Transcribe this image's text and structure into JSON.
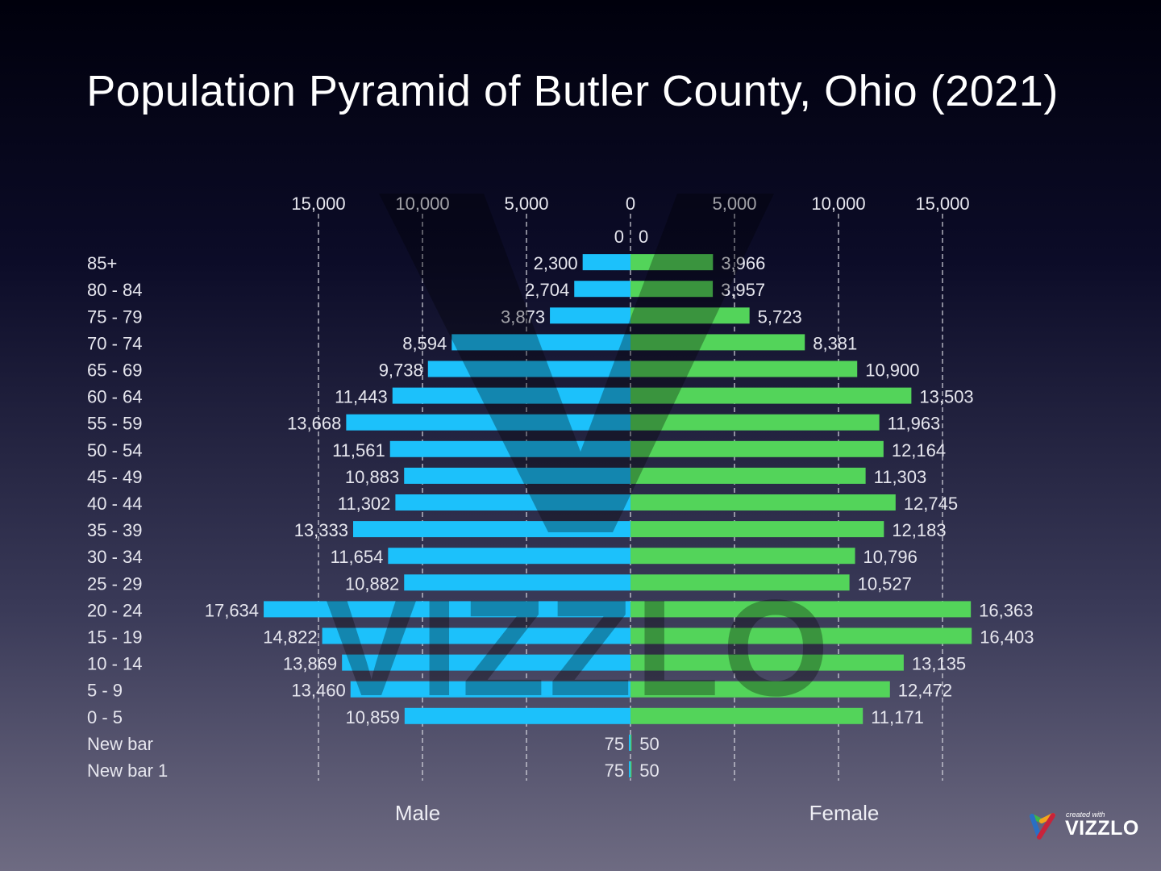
{
  "chart_data": {
    "type": "bar",
    "orientation": "horizontal",
    "layout": "population-pyramid",
    "title": "Population Pyramid of Butler County, Ohio (2021)",
    "categories": [
      "",
      "85+",
      "80 - 84",
      "75 - 79",
      "70 - 74",
      "65 - 69",
      "60 - 64",
      "55 - 59",
      "50 - 54",
      "45 - 49",
      "40 - 44",
      "35 - 39",
      "30 - 34",
      "25 - 29",
      "20 - 24",
      "15 - 19",
      "10 - 14",
      "5 - 9",
      "0 - 5",
      "New bar",
      "New bar 1"
    ],
    "series": [
      {
        "name": "Male",
        "color": "#1cc1fb",
        "values": [
          0,
          2300,
          2704,
          3873,
          8594,
          9738,
          11443,
          13668,
          11561,
          10883,
          11302,
          13333,
          11654,
          10882,
          17634,
          14822,
          13869,
          13460,
          10859,
          75,
          75
        ],
        "labels": [
          "0",
          "2,300",
          "2,704",
          "3,873",
          "8,594",
          "9,738",
          "11,443",
          "13,668",
          "11,561",
          "10,883",
          "11,302",
          "13,333",
          "11,654",
          "10,882",
          "17,634",
          "14,822",
          "13,869",
          "13,460",
          "10,859",
          "75",
          "75"
        ]
      },
      {
        "name": "Female",
        "color": "#53d45a",
        "values": [
          0,
          3966,
          3957,
          5723,
          8381,
          10900,
          13503,
          11963,
          12164,
          11303,
          12745,
          12183,
          10796,
          10527,
          16363,
          16403,
          13135,
          12472,
          11171,
          50,
          50
        ],
        "labels": [
          "0",
          "3,966",
          "3,957",
          "5,723",
          "8,381",
          "10,900",
          "13,503",
          "11,963",
          "12,164",
          "11,303",
          "12,745",
          "12,183",
          "10,796",
          "10,527",
          "16,363",
          "16,403",
          "13,135",
          "12,472",
          "11,171",
          "50",
          "50"
        ]
      }
    ],
    "xaxis": {
      "ticks": [
        15000,
        10000,
        5000,
        0,
        5000,
        10000,
        15000
      ],
      "tick_labels": [
        "15,000",
        "10,000",
        "5,000",
        "0",
        "5,000",
        "10,000",
        "15,000"
      ],
      "range": [
        -15000,
        15000
      ],
      "position": "top"
    },
    "grid": true,
    "gridline_style": "dashed"
  },
  "watermark": "VIZZLO",
  "branding": {
    "created_with": "created with",
    "brand": "VIZZLO"
  }
}
